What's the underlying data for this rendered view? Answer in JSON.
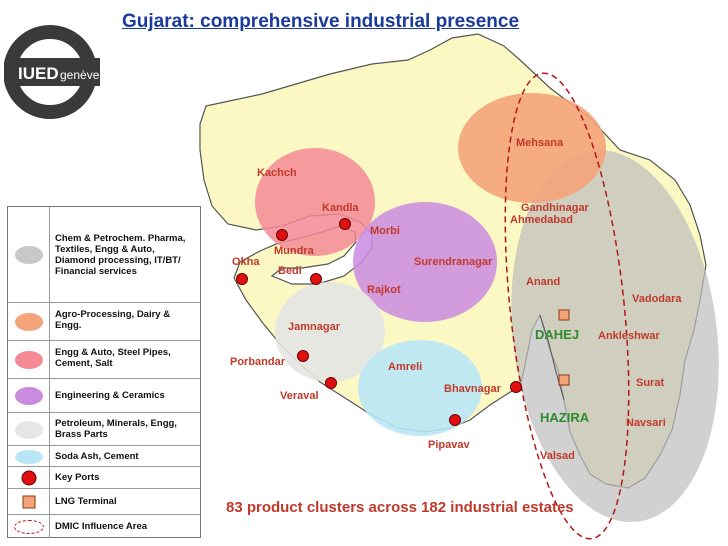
{
  "title": "Gujarat: comprehensive industrial presence",
  "logo": {
    "text_main": "IUED",
    "text_sub": "genève"
  },
  "legend": [
    {
      "label": "Chem & Petrochem. Pharma, Textiles, Engg & Auto, Diamond processing, IT/BT/ Financial services",
      "swatch": "grey-ellipse",
      "color": "#c8c8c8"
    },
    {
      "label": "Agro-Processing, Dairy & Engg.",
      "swatch": "ellipse",
      "color": "#f4a37a"
    },
    {
      "label": "Engg & Auto, Steel Pipes, Cement, Salt",
      "swatch": "ellipse",
      "color": "#f38a96"
    },
    {
      "label": "Engineering & Ceramics",
      "swatch": "ellipse",
      "color": "#c98be0"
    },
    {
      "label": "Petroleum, Minerals, Engg, Brass Parts",
      "swatch": "ellipse",
      "color": "#e6e6e6"
    },
    {
      "label": "Soda Ash, Cement",
      "swatch": "ellipse",
      "color": "#b9e6f5"
    },
    {
      "label": "Key Ports",
      "swatch": "port-dot",
      "color": "#e01010"
    },
    {
      "label": "LNG Terminal",
      "swatch": "lng-square",
      "color": "#f4a37a"
    },
    {
      "label": "DMIC Influence Area",
      "swatch": "dashed-ellipse",
      "color": "#c01818"
    }
  ],
  "places": [
    {
      "id": "kachch",
      "text": "Kachch"
    },
    {
      "id": "mehsana",
      "text": "Mehsana"
    },
    {
      "id": "kandla",
      "text": "Kandla"
    },
    {
      "id": "morbi",
      "text": "Morbi"
    },
    {
      "id": "gandhinagar",
      "text": "Gandhinagar"
    },
    {
      "id": "ahmedabad",
      "text": "Ahmedabad"
    },
    {
      "id": "mundra",
      "text": "Mundra"
    },
    {
      "id": "okha",
      "text": "Okha"
    },
    {
      "id": "bedi",
      "text": "Bedi"
    },
    {
      "id": "surendranagar",
      "text": "Surendranagar"
    },
    {
      "id": "anand",
      "text": "Anand"
    },
    {
      "id": "rajkot",
      "text": "Rajkot"
    },
    {
      "id": "vadodara",
      "text": "Vadodara"
    },
    {
      "id": "jamnagar",
      "text": "Jamnagar"
    },
    {
      "id": "dahej",
      "text": "DAHEJ"
    },
    {
      "id": "ankleshwar",
      "text": "Ankleshwar"
    },
    {
      "id": "porbandar",
      "text": "Porbandar"
    },
    {
      "id": "amreli",
      "text": "Amreli"
    },
    {
      "id": "surat",
      "text": "Surat"
    },
    {
      "id": "bhavnagar",
      "text": "Bhavnagar"
    },
    {
      "id": "veraval",
      "text": "Veraval"
    },
    {
      "id": "hazira",
      "text": "HAZIRA"
    },
    {
      "id": "navsari",
      "text": "Navsari"
    },
    {
      "id": "pipavav",
      "text": "Pipavav"
    },
    {
      "id": "valsad",
      "text": "Valsad"
    }
  ],
  "note": "83 product clusters across 182 industrial estates"
}
